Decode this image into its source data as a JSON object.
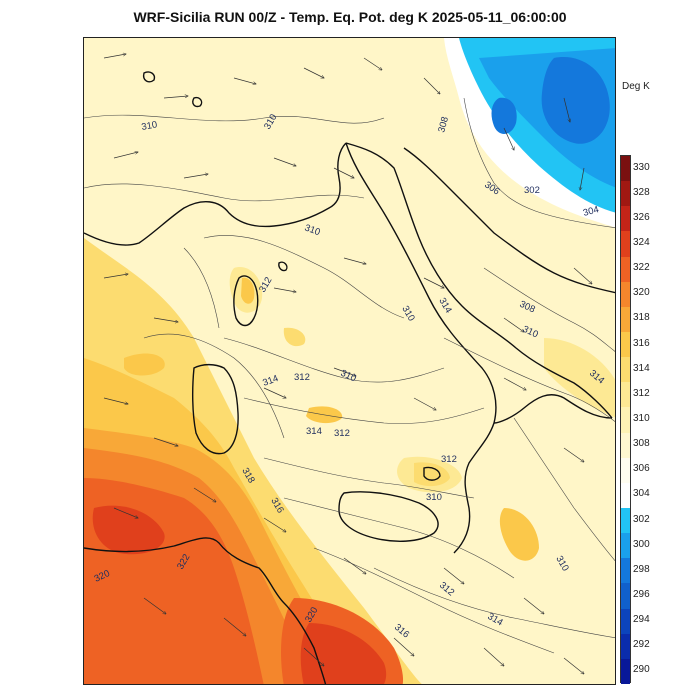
{
  "title": "WRF-Sicilia RUN 00/Z - Temp. Eq. Pot. deg K 2025-05-11_06:00:00",
  "legend": {
    "units": "Deg K",
    "ticks": [
      "330",
      "328",
      "326",
      "324",
      "322",
      "320",
      "318",
      "316",
      "314",
      "312",
      "310",
      "308",
      "306",
      "304",
      "302",
      "300",
      "298",
      "296",
      "294",
      "292",
      "290"
    ],
    "levels": [
      {
        "value": 330,
        "color": "#7a1010"
      },
      {
        "value": 328,
        "color": "#a01812"
      },
      {
        "value": 326,
        "color": "#c42418"
      },
      {
        "value": 324,
        "color": "#e0401c"
      },
      {
        "value": 322,
        "color": "#ee6224"
      },
      {
        "value": 320,
        "color": "#f4862c"
      },
      {
        "value": 318,
        "color": "#f8a838"
      },
      {
        "value": 316,
        "color": "#fbc84a"
      },
      {
        "value": 314,
        "color": "#fcdc70"
      },
      {
        "value": 312,
        "color": "#fde994"
      },
      {
        "value": 310,
        "color": "#fef3b4"
      },
      {
        "value": 308,
        "color": "#fff8d0"
      },
      {
        "value": 306,
        "color": "#fffdf0"
      },
      {
        "value": 304,
        "color": "#ffffff"
      },
      {
        "value": 302,
        "color": "#22c4f4"
      },
      {
        "value": 300,
        "color": "#1aa0ec"
      },
      {
        "value": 298,
        "color": "#1478dc"
      },
      {
        "value": 296,
        "color": "#1060cc"
      },
      {
        "value": 294,
        "color": "#0c44bc"
      },
      {
        "value": 292,
        "color": "#0a2cac"
      },
      {
        "value": 290,
        "color": "#081898"
      }
    ]
  },
  "contour_labels": [
    "310",
    "310",
    "308",
    "306",
    "302",
    "304",
    "310",
    "312",
    "310",
    "314",
    "308",
    "310",
    "314",
    "314",
    "312",
    "310",
    "314",
    "312",
    "312",
    "310",
    "318",
    "316",
    "320",
    "322",
    "320",
    "316",
    "312",
    "314",
    "310"
  ]
}
